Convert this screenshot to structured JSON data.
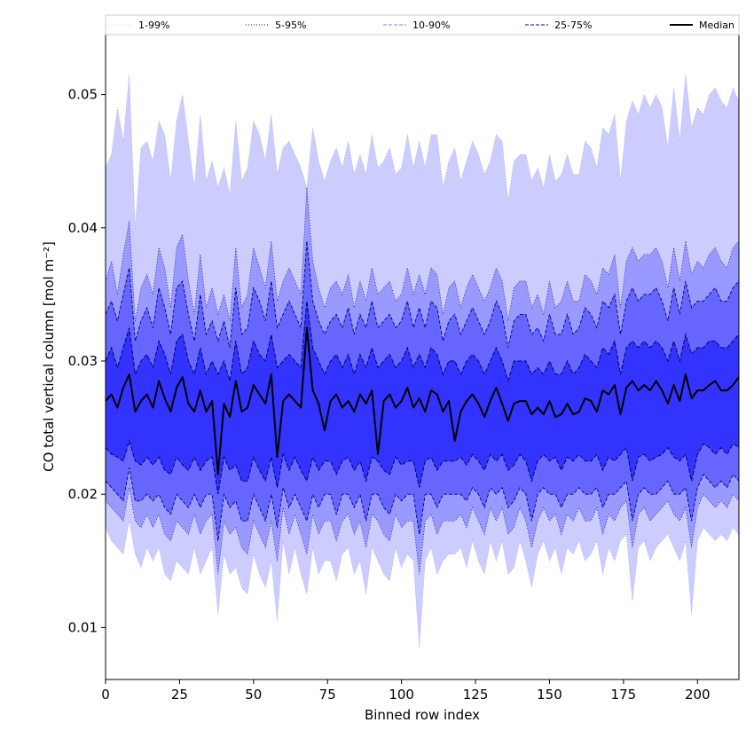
{
  "chart_data": {
    "type": "area",
    "title": "",
    "xlabel": "Binned row index",
    "ylabel": "CO total vertical column [mol m⁻²]",
    "xlim": [
      0,
      214
    ],
    "ylim": [
      0.0061,
      0.0545
    ],
    "x_ticks": [
      0,
      25,
      50,
      75,
      100,
      125,
      150,
      175,
      200
    ],
    "x_tick_labels": [
      "0",
      "25",
      "50",
      "75",
      "100",
      "125",
      "150",
      "175",
      "200"
    ],
    "y_ticks": [
      0.01,
      0.02,
      0.03,
      0.04,
      0.05
    ],
    "y_tick_labels": [
      "0.01",
      "0.02",
      "0.03",
      "0.04",
      "0.05"
    ],
    "grid": false,
    "legend_position": "top",
    "legend": [
      {
        "label": "1-99%",
        "style": "dotted",
        "color": "#ccccff"
      },
      {
        "label": "5-95%",
        "style": "dotted",
        "color": "#0000aa"
      },
      {
        "label": "10-90%",
        "style": "dashed",
        "color": "#8080ff"
      },
      {
        "label": "25-75%",
        "style": "dashed",
        "color": "#0000cc"
      },
      {
        "label": "Median",
        "style": "solid",
        "color": "#000000"
      }
    ],
    "x_start": 0,
    "x_step": 2,
    "series": [
      {
        "name": "1-99%",
        "color": "#ccccff",
        "upper": [
          0.0445,
          0.0455,
          0.049,
          0.0465,
          0.0515,
          0.04,
          0.046,
          0.0465,
          0.045,
          0.048,
          0.047,
          0.0435,
          0.048,
          0.05,
          0.0465,
          0.043,
          0.0485,
          0.0435,
          0.045,
          0.043,
          0.0445,
          0.0425,
          0.048,
          0.0435,
          0.0445,
          0.048,
          0.047,
          0.045,
          0.0485,
          0.044,
          0.046,
          0.0465,
          0.0455,
          0.0445,
          0.043,
          0.0475,
          0.045,
          0.0435,
          0.045,
          0.046,
          0.0445,
          0.0465,
          0.044,
          0.0455,
          0.044,
          0.047,
          0.0445,
          0.045,
          0.046,
          0.044,
          0.0445,
          0.047,
          0.0445,
          0.0465,
          0.0445,
          0.047,
          0.047,
          0.043,
          0.045,
          0.046,
          0.0435,
          0.045,
          0.0465,
          0.0455,
          0.044,
          0.045,
          0.047,
          0.0465,
          0.042,
          0.045,
          0.0455,
          0.0455,
          0.0435,
          0.0445,
          0.043,
          0.0455,
          0.0435,
          0.044,
          0.0455,
          0.044,
          0.044,
          0.0465,
          0.046,
          0.0445,
          0.0475,
          0.047,
          0.0485,
          0.0435,
          0.048,
          0.0495,
          0.0485,
          0.05,
          0.049,
          0.05,
          0.049,
          0.046,
          0.0505,
          0.0465,
          0.0515,
          0.0475,
          0.049,
          0.0485,
          0.05,
          0.0505,
          0.0495,
          0.049,
          0.0505,
          0.0495
        ],
        "lower": [
          0.0175,
          0.0165,
          0.016,
          0.0155,
          0.018,
          0.0155,
          0.0145,
          0.016,
          0.015,
          0.016,
          0.014,
          0.0135,
          0.015,
          0.0145,
          0.014,
          0.016,
          0.014,
          0.015,
          0.016,
          0.011,
          0.0155,
          0.014,
          0.0145,
          0.013,
          0.0125,
          0.0155,
          0.014,
          0.013,
          0.015,
          0.0105,
          0.0165,
          0.014,
          0.016,
          0.014,
          0.0125,
          0.016,
          0.014,
          0.015,
          0.015,
          0.0135,
          0.0155,
          0.016,
          0.014,
          0.015,
          0.0125,
          0.016,
          0.015,
          0.014,
          0.0135,
          0.016,
          0.0145,
          0.0155,
          0.015,
          0.0085,
          0.015,
          0.016,
          0.014,
          0.015,
          0.0155,
          0.0155,
          0.016,
          0.0145,
          0.0165,
          0.015,
          0.014,
          0.0165,
          0.015,
          0.0165,
          0.014,
          0.0145,
          0.0165,
          0.015,
          0.013,
          0.0155,
          0.0165,
          0.015,
          0.016,
          0.014,
          0.016,
          0.0155,
          0.0165,
          0.015,
          0.0155,
          0.0165,
          0.014,
          0.016,
          0.015,
          0.0165,
          0.017,
          0.012,
          0.016,
          0.0165,
          0.015,
          0.016,
          0.0165,
          0.017,
          0.016,
          0.015,
          0.0165,
          0.011,
          0.0165,
          0.0175,
          0.017,
          0.0165,
          0.017,
          0.0165,
          0.0175,
          0.017
        ]
      },
      {
        "name": "5-95%",
        "color": "#9999ff",
        "upper": [
          0.036,
          0.0375,
          0.035,
          0.038,
          0.0405,
          0.033,
          0.0355,
          0.0365,
          0.035,
          0.0385,
          0.037,
          0.034,
          0.0385,
          0.0395,
          0.036,
          0.0335,
          0.038,
          0.034,
          0.0355,
          0.0335,
          0.035,
          0.033,
          0.0385,
          0.034,
          0.035,
          0.0385,
          0.037,
          0.0355,
          0.039,
          0.0345,
          0.036,
          0.037,
          0.036,
          0.035,
          0.043,
          0.0375,
          0.0355,
          0.034,
          0.0355,
          0.036,
          0.035,
          0.0365,
          0.034,
          0.036,
          0.0345,
          0.037,
          0.035,
          0.0355,
          0.036,
          0.0345,
          0.035,
          0.037,
          0.035,
          0.0365,
          0.035,
          0.037,
          0.0365,
          0.0335,
          0.0355,
          0.036,
          0.034,
          0.0355,
          0.0365,
          0.0355,
          0.0345,
          0.0355,
          0.037,
          0.036,
          0.033,
          0.0355,
          0.036,
          0.036,
          0.034,
          0.035,
          0.0335,
          0.036,
          0.034,
          0.0345,
          0.036,
          0.0345,
          0.0345,
          0.0365,
          0.036,
          0.035,
          0.037,
          0.0365,
          0.038,
          0.034,
          0.0375,
          0.0385,
          0.0375,
          0.038,
          0.038,
          0.0385,
          0.0375,
          0.0355,
          0.0385,
          0.036,
          0.039,
          0.0365,
          0.0375,
          0.037,
          0.038,
          0.0385,
          0.0375,
          0.037,
          0.0385,
          0.039
        ],
        "lower": [
          0.0195,
          0.019,
          0.0185,
          0.018,
          0.0205,
          0.018,
          0.0175,
          0.0185,
          0.0175,
          0.0185,
          0.017,
          0.0165,
          0.018,
          0.0175,
          0.017,
          0.0185,
          0.017,
          0.018,
          0.0185,
          0.014,
          0.018,
          0.017,
          0.0175,
          0.016,
          0.0155,
          0.018,
          0.017,
          0.016,
          0.018,
          0.015,
          0.019,
          0.017,
          0.0185,
          0.017,
          0.0155,
          0.0185,
          0.017,
          0.018,
          0.018,
          0.0165,
          0.018,
          0.0185,
          0.017,
          0.018,
          0.016,
          0.0185,
          0.018,
          0.017,
          0.0165,
          0.0185,
          0.0175,
          0.018,
          0.018,
          0.014,
          0.018,
          0.0185,
          0.017,
          0.018,
          0.018,
          0.018,
          0.0185,
          0.0175,
          0.019,
          0.018,
          0.017,
          0.019,
          0.018,
          0.019,
          0.017,
          0.0175,
          0.019,
          0.018,
          0.016,
          0.018,
          0.019,
          0.018,
          0.0185,
          0.017,
          0.0185,
          0.018,
          0.019,
          0.018,
          0.018,
          0.019,
          0.017,
          0.0185,
          0.018,
          0.019,
          0.0195,
          0.016,
          0.0185,
          0.019,
          0.018,
          0.0185,
          0.019,
          0.0195,
          0.0185,
          0.018,
          0.019,
          0.016,
          0.019,
          0.02,
          0.0195,
          0.019,
          0.0195,
          0.019,
          0.02,
          0.0195
        ]
      },
      {
        "name": "10-90%",
        "color": "#6666ff",
        "upper": [
          0.0335,
          0.0345,
          0.033,
          0.035,
          0.037,
          0.0315,
          0.033,
          0.034,
          0.0325,
          0.0355,
          0.034,
          0.032,
          0.0355,
          0.036,
          0.0335,
          0.0315,
          0.035,
          0.032,
          0.033,
          0.0315,
          0.033,
          0.031,
          0.0355,
          0.032,
          0.0325,
          0.0355,
          0.0345,
          0.033,
          0.036,
          0.0325,
          0.0335,
          0.0345,
          0.0335,
          0.0325,
          0.039,
          0.0345,
          0.033,
          0.032,
          0.033,
          0.0335,
          0.0325,
          0.034,
          0.032,
          0.0335,
          0.0325,
          0.0345,
          0.0325,
          0.033,
          0.0335,
          0.0325,
          0.033,
          0.0345,
          0.0325,
          0.034,
          0.0325,
          0.0345,
          0.034,
          0.0315,
          0.033,
          0.0335,
          0.032,
          0.033,
          0.034,
          0.033,
          0.032,
          0.033,
          0.0345,
          0.0335,
          0.031,
          0.033,
          0.0335,
          0.0335,
          0.032,
          0.0325,
          0.0315,
          0.0335,
          0.032,
          0.032,
          0.0335,
          0.032,
          0.0325,
          0.034,
          0.0335,
          0.0325,
          0.0345,
          0.034,
          0.035,
          0.032,
          0.0345,
          0.0355,
          0.0345,
          0.035,
          0.035,
          0.0355,
          0.0345,
          0.033,
          0.0355,
          0.0335,
          0.036,
          0.034,
          0.0345,
          0.0345,
          0.035,
          0.0355,
          0.0345,
          0.0345,
          0.0355,
          0.036
        ],
        "lower": [
          0.021,
          0.0205,
          0.02,
          0.0195,
          0.022,
          0.0195,
          0.0195,
          0.02,
          0.0195,
          0.02,
          0.019,
          0.0185,
          0.02,
          0.0195,
          0.019,
          0.02,
          0.019,
          0.02,
          0.02,
          0.0165,
          0.02,
          0.019,
          0.0195,
          0.018,
          0.018,
          0.02,
          0.019,
          0.018,
          0.02,
          0.0175,
          0.0205,
          0.019,
          0.02,
          0.019,
          0.018,
          0.02,
          0.019,
          0.02,
          0.02,
          0.0185,
          0.02,
          0.02,
          0.019,
          0.02,
          0.018,
          0.02,
          0.02,
          0.019,
          0.0185,
          0.02,
          0.0195,
          0.02,
          0.02,
          0.017,
          0.02,
          0.02,
          0.019,
          0.02,
          0.02,
          0.02,
          0.02,
          0.0195,
          0.0205,
          0.02,
          0.019,
          0.0205,
          0.02,
          0.0205,
          0.019,
          0.0195,
          0.0205,
          0.02,
          0.018,
          0.02,
          0.0205,
          0.02,
          0.02,
          0.019,
          0.02,
          0.02,
          0.0205,
          0.02,
          0.02,
          0.0205,
          0.019,
          0.02,
          0.02,
          0.0205,
          0.021,
          0.018,
          0.02,
          0.0205,
          0.02,
          0.02,
          0.0205,
          0.021,
          0.02,
          0.02,
          0.0205,
          0.018,
          0.0205,
          0.0215,
          0.021,
          0.0205,
          0.021,
          0.0205,
          0.0215,
          0.021
        ]
      },
      {
        "name": "25-75%",
        "color": "#3333ff",
        "upper": [
          0.03,
          0.031,
          0.0295,
          0.031,
          0.0325,
          0.029,
          0.03,
          0.0305,
          0.0295,
          0.0315,
          0.0305,
          0.029,
          0.0315,
          0.032,
          0.03,
          0.029,
          0.031,
          0.029,
          0.03,
          0.029,
          0.03,
          0.0285,
          0.0315,
          0.029,
          0.0295,
          0.0315,
          0.0305,
          0.03,
          0.032,
          0.0295,
          0.03,
          0.0305,
          0.03,
          0.0295,
          0.0345,
          0.031,
          0.03,
          0.029,
          0.03,
          0.0305,
          0.0295,
          0.0305,
          0.029,
          0.0305,
          0.0295,
          0.031,
          0.0295,
          0.03,
          0.0305,
          0.0295,
          0.03,
          0.031,
          0.0295,
          0.0305,
          0.0295,
          0.031,
          0.0305,
          0.029,
          0.03,
          0.03,
          0.029,
          0.03,
          0.0305,
          0.03,
          0.029,
          0.03,
          0.031,
          0.03,
          0.0285,
          0.03,
          0.03,
          0.03,
          0.029,
          0.0295,
          0.029,
          0.03,
          0.029,
          0.029,
          0.03,
          0.029,
          0.0295,
          0.0305,
          0.03,
          0.0295,
          0.031,
          0.0305,
          0.0315,
          0.029,
          0.031,
          0.0315,
          0.031,
          0.0315,
          0.031,
          0.0315,
          0.031,
          0.03,
          0.0315,
          0.03,
          0.032,
          0.0305,
          0.031,
          0.031,
          0.0315,
          0.0315,
          0.031,
          0.031,
          0.0315,
          0.032
        ],
        "lower": [
          0.0235,
          0.023,
          0.0228,
          0.0225,
          0.024,
          0.0225,
          0.0222,
          0.0228,
          0.0222,
          0.0228,
          0.0218,
          0.0215,
          0.0228,
          0.0222,
          0.0218,
          0.0228,
          0.0218,
          0.0225,
          0.0228,
          0.02,
          0.0228,
          0.0218,
          0.0222,
          0.021,
          0.021,
          0.0228,
          0.0218,
          0.021,
          0.0228,
          0.0205,
          0.023,
          0.0218,
          0.0228,
          0.0218,
          0.021,
          0.0228,
          0.0218,
          0.0225,
          0.0225,
          0.0215,
          0.0225,
          0.0228,
          0.0218,
          0.0225,
          0.021,
          0.0228,
          0.0225,
          0.0218,
          0.0215,
          0.0228,
          0.0222,
          0.0225,
          0.0225,
          0.0205,
          0.0225,
          0.0228,
          0.0218,
          0.0225,
          0.0225,
          0.0225,
          0.0228,
          0.0222,
          0.023,
          0.0225,
          0.0218,
          0.023,
          0.0225,
          0.023,
          0.0218,
          0.0222,
          0.023,
          0.0225,
          0.021,
          0.0225,
          0.023,
          0.0225,
          0.0228,
          0.0218,
          0.0228,
          0.0225,
          0.023,
          0.0225,
          0.0225,
          0.023,
          0.0218,
          0.0228,
          0.0225,
          0.023,
          0.0235,
          0.021,
          0.0228,
          0.023,
          0.0225,
          0.0228,
          0.023,
          0.0235,
          0.0228,
          0.0225,
          0.023,
          0.021,
          0.023,
          0.0238,
          0.0235,
          0.023,
          0.0235,
          0.023,
          0.0238,
          0.0235
        ]
      },
      {
        "name": "Median",
        "color": "#000000",
        "values": [
          0.027,
          0.0275,
          0.0265,
          0.028,
          0.029,
          0.0262,
          0.027,
          0.0275,
          0.0265,
          0.0285,
          0.0272,
          0.0262,
          0.028,
          0.0288,
          0.0268,
          0.0262,
          0.0278,
          0.0262,
          0.027,
          0.0215,
          0.0268,
          0.0258,
          0.0285,
          0.0262,
          0.0265,
          0.0282,
          0.0275,
          0.0268,
          0.029,
          0.0228,
          0.027,
          0.0275,
          0.027,
          0.0265,
          0.0325,
          0.0278,
          0.0268,
          0.0248,
          0.027,
          0.0275,
          0.0265,
          0.027,
          0.0262,
          0.0275,
          0.0268,
          0.0278,
          0.023,
          0.027,
          0.0275,
          0.0265,
          0.027,
          0.028,
          0.0265,
          0.0272,
          0.0262,
          0.0278,
          0.0275,
          0.0262,
          0.027,
          0.024,
          0.0262,
          0.027,
          0.0275,
          0.0268,
          0.0258,
          0.027,
          0.028,
          0.0268,
          0.0255,
          0.0268,
          0.027,
          0.027,
          0.026,
          0.0265,
          0.026,
          0.027,
          0.0258,
          0.026,
          0.0268,
          0.026,
          0.0262,
          0.0272,
          0.027,
          0.0262,
          0.0278,
          0.0275,
          0.0282,
          0.026,
          0.028,
          0.0285,
          0.0278,
          0.0282,
          0.0278,
          0.0285,
          0.0278,
          0.0268,
          0.0282,
          0.027,
          0.029,
          0.0272,
          0.0278,
          0.0278,
          0.0282,
          0.0285,
          0.0278,
          0.0278,
          0.0282,
          0.0288
        ]
      }
    ]
  }
}
